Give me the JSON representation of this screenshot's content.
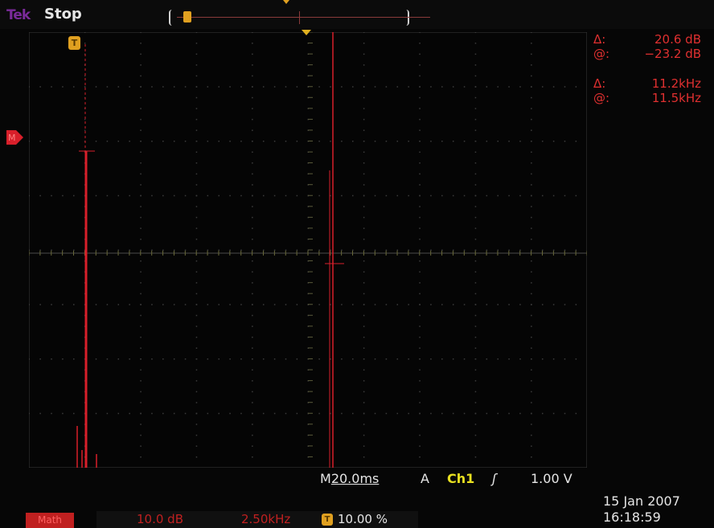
{
  "header": {
    "brand": "Tek",
    "run_state": "Stop"
  },
  "cursors": {
    "delta_symbol": "Δ:",
    "at_symbol": "@:",
    "amp_delta": "20.6 dB",
    "amp_at": "−23.2 dB",
    "freq_delta": "11.2kHz",
    "freq_at": "11.5kHz"
  },
  "markers": {
    "trigger_icon": "T",
    "math_marker": "M"
  },
  "timebase": {
    "prefix": "M",
    "value": "20.0ms"
  },
  "trigger": {
    "mode": "A",
    "source": "Ch1",
    "slope_icon": "rising-edge-icon",
    "slope_glyph": "ʃ",
    "level": "1.00 V",
    "position_percent": "10.00 %"
  },
  "math": {
    "badge": "Math",
    "scale": "10.0 dB",
    "span": "2.50kHz"
  },
  "clock": {
    "date": "15 Jan  2007",
    "time": "16:18:59"
  },
  "colors": {
    "trace": "#d81f2a",
    "trigger": "#e0a020",
    "channel": "#e8e020",
    "text": "#e6e6e6"
  }
}
